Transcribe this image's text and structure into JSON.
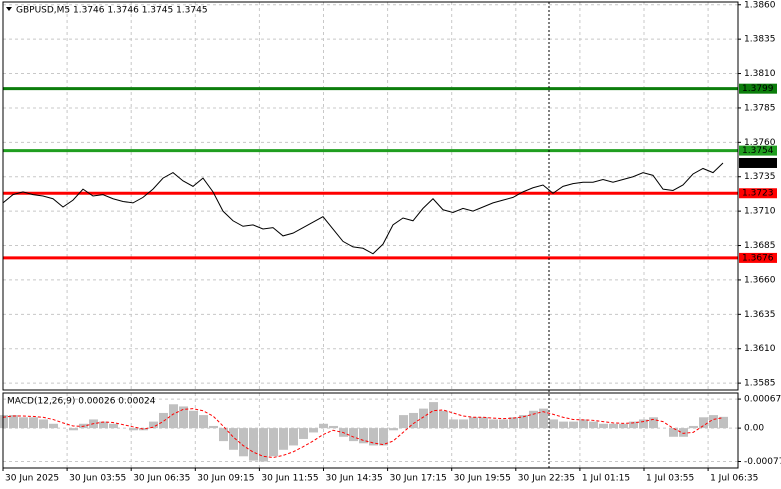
{
  "chart_data": [
    {
      "type": "line",
      "title": "GBPUSD,M5  1.3746 1.3746 1.3745 1.3745",
      "color": "#000000",
      "values": [
        1.3716,
        1.3722,
        1.3724,
        1.3722,
        1.3721,
        1.3719,
        1.3713,
        1.3718,
        1.3726,
        1.3721,
        1.3722,
        1.3719,
        1.3717,
        1.3716,
        1.372,
        1.3726,
        1.3734,
        1.3738,
        1.3732,
        1.3728,
        1.3734,
        1.3724,
        1.371,
        1.3703,
        1.3699,
        1.37,
        1.3697,
        1.3698,
        1.3692,
        1.3694,
        1.3698,
        1.3702,
        1.3706,
        1.3697,
        1.3688,
        1.3684,
        1.3683,
        1.3679,
        1.3686,
        1.37,
        1.3705,
        1.3703,
        1.3712,
        1.3719,
        1.3711,
        1.3709,
        1.3712,
        1.371,
        1.3713,
        1.3716,
        1.3718,
        1.372,
        1.3724,
        1.3727,
        1.3729,
        1.3723,
        1.3728,
        1.373,
        1.3731,
        1.3731,
        1.3733,
        1.3731,
        1.3733,
        1.3735,
        1.3738,
        1.3736,
        1.3726,
        1.3725,
        1.3729,
        1.3737,
        1.3741,
        1.3738,
        1.3745
      ],
      "ylim": [
        1.358,
        1.3862
      ],
      "yticks": [
        {
          "value": 1.386,
          "label": "1.3860"
        },
        1.3835,
        {
          "value": 1.381,
          "label": "1.3810"
        },
        1.3785,
        {
          "value": 1.376,
          "label": "1.3760"
        },
        1.3735,
        {
          "value": 1.371,
          "label": "1.3710"
        },
        1.3685,
        {
          "value": 1.366,
          "label": "1.3660"
        },
        1.3635,
        {
          "value": 1.361,
          "label": "1.3610"
        },
        1.3585
      ],
      "grid": true,
      "levels": [
        {
          "value": 1.3799,
          "color": "#0b7d0b"
        },
        {
          "value": 1.3754,
          "color": "#1f9e1f"
        },
        {
          "value": 1.3723,
          "color": "#ff0000"
        },
        {
          "value": 1.3676,
          "color": "#ff0000"
        }
      ],
      "current": {
        "value": 1.3745,
        "color": "#000000"
      }
    },
    {
      "type": "macd",
      "title": "MACD(12,26,9) 0.00026 0.00024",
      "series": [
        {
          "color": "#c0c0c0",
          "values": [
            0.0003,
            0.0003,
            0.00025,
            0.00025,
            0.0002,
            0.0001,
            0,
            -5e-05,
            0.0001,
            0.0002,
            0.00015,
            0.0001,
            0,
            -5e-05,
            -5e-05,
            0.00015,
            0.00035,
            0.00055,
            0.0005,
            0.0004,
            0.0003,
            5e-05,
            -0.0003,
            -0.0005,
            -0.00065,
            -0.00075,
            -0.00077,
            -0.00065,
            -0.0005,
            -0.0004,
            -0.00025,
            -0.0001,
            0.0001,
            5e-05,
            -0.0002,
            -0.0003,
            -0.00035,
            -0.0004,
            -0.0004,
            -5e-05,
            0.0003,
            0.00035,
            0.00045,
            0.0006,
            0.0004,
            0.0002,
            0.0002,
            0.00025,
            0.00025,
            0.0002,
            0.0002,
            0.00025,
            0.0003,
            0.0004,
            0.00045,
            0.0002,
            0.00015,
            0.00015,
            0.0002,
            0.00015,
            0.0001,
            0.0001,
            0.0001,
            0.00015,
            0.0002,
            0.00025,
            0,
            -0.0002,
            -0.0002,
            5e-05,
            0.00025,
            0.0003,
            0.00026
          ]
        },
        {
          "color": "#ff0000",
          "values": [
            0.00025,
            0.00028,
            0.00028,
            0.00027,
            0.00025,
            0.0002,
            0.00012,
            5e-05,
            4e-05,
            0.0001,
            0.00014,
            0.00013,
            8e-05,
            3e-05,
            -2e-05,
            2e-05,
            0.00015,
            0.00032,
            0.00043,
            0.00045,
            0.0004,
            0.00028,
            5e-05,
            -0.0002,
            -0.0004,
            -0.00055,
            -0.00065,
            -0.00068,
            -0.00063,
            -0.00055,
            -0.00043,
            -0.0003,
            -0.00015,
            -5e-05,
            -0.0001,
            -0.0002,
            -0.00028,
            -0.00034,
            -0.00038,
            -0.0003,
            -0.0001,
            0.0001,
            0.00025,
            0.0004,
            0.00042,
            0.00035,
            0.00028,
            0.00025,
            0.00025,
            0.00023,
            0.00022,
            0.00023,
            0.00026,
            0.00032,
            0.00038,
            0.00032,
            0.00025,
            0.0002,
            0.00019,
            0.00018,
            0.00015,
            0.00012,
            0.00011,
            0.00012,
            0.00015,
            0.0002,
            0.00015,
            0,
            -0.00012,
            -0.0001,
            5e-05,
            0.0002,
            0.00024
          ]
        }
      ],
      "ylim": [
        -0.00092,
        0.00081
      ],
      "yticks": [
        0.00067,
        {
          "value": 0,
          "label": "0.00"
        },
        -0.00077
      ],
      "grid": true,
      "x_labels": [
        "30 Jun 2025",
        "30 Jun 03:55",
        "30 Jun 06:35",
        "30 Jun 09:15",
        "30 Jun 11:55",
        "30 Jun 14:35",
        "30 Jun 17:15",
        "30 Jun 19:55",
        "30 Jun 22:35",
        "1 Jul 01:15",
        "1 Jul 03:55",
        "1 Jul 06:35"
      ]
    }
  ]
}
